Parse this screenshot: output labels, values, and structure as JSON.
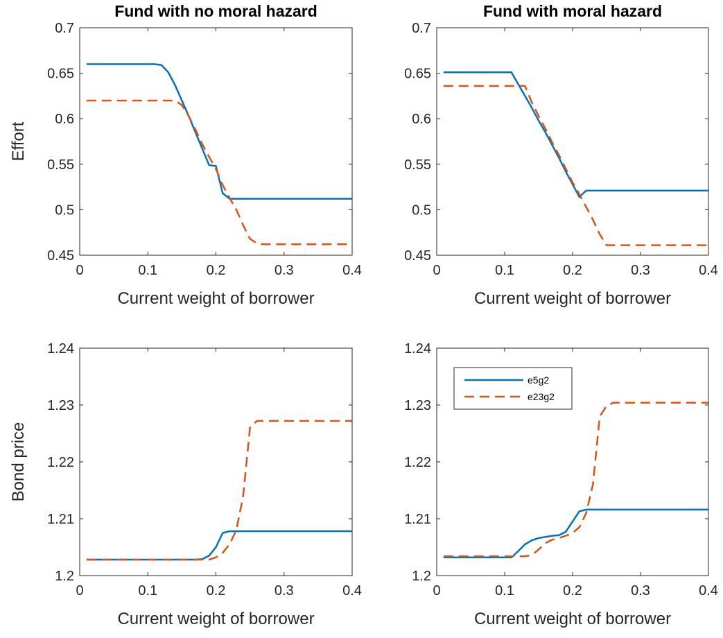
{
  "chart_data": [
    {
      "type": "line",
      "title": "Fund with no moral hazard",
      "ylabel": "Effort",
      "xlabel": "Current weight of borrower",
      "x": [
        0.01,
        0.05,
        0.1,
        0.11,
        0.12,
        0.13,
        0.14,
        0.15,
        0.16,
        0.17,
        0.18,
        0.19,
        0.2,
        0.21,
        0.22,
        0.23,
        0.24,
        0.25,
        0.26,
        0.27,
        0.3,
        0.35,
        0.4
      ],
      "series": [
        {
          "color": "#0072bd",
          "line_style": "solid",
          "values": [
            0.66,
            0.66,
            0.66,
            0.66,
            0.659,
            0.651,
            0.637,
            0.62,
            0.603,
            0.585,
            0.567,
            0.549,
            0.548,
            0.518,
            0.512,
            0.512,
            0.512,
            0.512,
            0.512,
            0.512,
            0.512,
            0.512,
            0.512
          ]
        },
        {
          "color": "#d95319",
          "line_style": "dashed",
          "values": [
            0.62,
            0.62,
            0.62,
            0.62,
            0.62,
            0.62,
            0.62,
            0.615,
            0.603,
            0.588,
            0.572,
            0.558,
            0.545,
            0.527,
            0.513,
            0.5,
            0.483,
            0.468,
            0.463,
            0.462,
            0.462,
            0.462,
            0.462
          ]
        }
      ],
      "xlim": [
        0,
        0.4
      ],
      "xticks": [
        0,
        0.1,
        0.2,
        0.3,
        0.4
      ],
      "ylim": [
        0.45,
        0.7
      ],
      "yticks": [
        0.45,
        0.5,
        0.55,
        0.6,
        0.65,
        0.7
      ]
    },
    {
      "type": "line",
      "title": "Fund with moral hazard",
      "xlabel": "Current weight of borrower",
      "x": [
        0.01,
        0.05,
        0.1,
        0.11,
        0.12,
        0.13,
        0.14,
        0.15,
        0.16,
        0.17,
        0.18,
        0.19,
        0.2,
        0.21,
        0.22,
        0.23,
        0.24,
        0.25,
        0.26,
        0.27,
        0.3,
        0.35,
        0.4
      ],
      "series": [
        {
          "color": "#0072bd",
          "line_style": "solid",
          "values": [
            0.651,
            0.651,
            0.651,
            0.651,
            0.638,
            0.625,
            0.612,
            0.598,
            0.585,
            0.571,
            0.557,
            0.542,
            0.528,
            0.514,
            0.521,
            0.521,
            0.521,
            0.521,
            0.521,
            0.521,
            0.521,
            0.521,
            0.521
          ]
        },
        {
          "color": "#d95319",
          "line_style": "dashed",
          "values": [
            0.636,
            0.636,
            0.636,
            0.636,
            0.636,
            0.636,
            0.618,
            0.603,
            0.589,
            0.574,
            0.56,
            0.545,
            0.53,
            0.517,
            0.503,
            0.489,
            0.473,
            0.461,
            0.461,
            0.461,
            0.461,
            0.461,
            0.461
          ]
        }
      ],
      "xlim": [
        0,
        0.4
      ],
      "xticks": [
        0,
        0.1,
        0.2,
        0.3,
        0.4
      ],
      "ylim": [
        0.45,
        0.7
      ],
      "yticks": [
        0.45,
        0.5,
        0.55,
        0.6,
        0.65,
        0.7
      ]
    },
    {
      "type": "line",
      "ylabel": "Bond price",
      "xlabel": "Current weight of borrower",
      "x": [
        0.01,
        0.05,
        0.1,
        0.11,
        0.12,
        0.13,
        0.14,
        0.15,
        0.16,
        0.17,
        0.18,
        0.19,
        0.2,
        0.21,
        0.22,
        0.23,
        0.24,
        0.25,
        0.26,
        0.27,
        0.3,
        0.35,
        0.4
      ],
      "series": [
        {
          "color": "#0072bd",
          "line_style": "solid",
          "values": [
            1.2028,
            1.2028,
            1.2028,
            1.2028,
            1.2028,
            1.2028,
            1.2028,
            1.2028,
            1.2028,
            1.2028,
            1.2029,
            1.2035,
            1.205,
            1.2075,
            1.2078,
            1.2078,
            1.2078,
            1.2078,
            1.2078,
            1.2078,
            1.2078,
            1.2078,
            1.2078
          ]
        },
        {
          "color": "#d95319",
          "line_style": "dashed",
          "values": [
            1.2028,
            1.2028,
            1.2028,
            1.2028,
            1.2028,
            1.2028,
            1.2028,
            1.2028,
            1.2028,
            1.2028,
            1.2028,
            1.2028,
            1.2032,
            1.204,
            1.2055,
            1.208,
            1.214,
            1.226,
            1.2272,
            1.2272,
            1.2272,
            1.2272,
            1.2272
          ]
        }
      ],
      "xlim": [
        0,
        0.4
      ],
      "xticks": [
        0,
        0.1,
        0.2,
        0.3,
        0.4
      ],
      "ylim": [
        1.2,
        1.24
      ],
      "yticks": [
        1.2,
        1.21,
        1.22,
        1.23,
        1.24
      ]
    },
    {
      "type": "line",
      "xlabel": "Current weight of borrower",
      "legend": "northwest",
      "x": [
        0.01,
        0.05,
        0.1,
        0.11,
        0.12,
        0.13,
        0.14,
        0.15,
        0.16,
        0.17,
        0.18,
        0.19,
        0.2,
        0.21,
        0.22,
        0.23,
        0.24,
        0.25,
        0.26,
        0.27,
        0.3,
        0.35,
        0.4
      ],
      "series": [
        {
          "name": "e5g2",
          "color": "#0072bd",
          "line_style": "solid",
          "values": [
            1.2032,
            1.2032,
            1.2032,
            1.2032,
            1.2043,
            1.2055,
            1.2062,
            1.2066,
            1.2068,
            1.207,
            1.2071,
            1.2077,
            1.2095,
            1.2113,
            1.2116,
            1.2116,
            1.2116,
            1.2116,
            1.2116,
            1.2116,
            1.2116,
            1.2116,
            1.2116
          ]
        },
        {
          "name": "e23g2",
          "color": "#d95319",
          "line_style": "dashed",
          "values": [
            1.2034,
            1.2034,
            1.2034,
            1.2034,
            1.2034,
            1.2034,
            1.2036,
            1.2046,
            1.2057,
            1.2063,
            1.2066,
            1.207,
            1.2075,
            1.2085,
            1.211,
            1.216,
            1.228,
            1.2298,
            1.2304,
            1.2304,
            1.2304,
            1.2304,
            1.2304
          ]
        }
      ],
      "xlim": [
        0,
        0.4
      ],
      "xticks": [
        0,
        0.1,
        0.2,
        0.3,
        0.4
      ],
      "ylim": [
        1.2,
        1.24
      ],
      "yticks": [
        1.2,
        1.21,
        1.22,
        1.23,
        1.24
      ]
    }
  ]
}
